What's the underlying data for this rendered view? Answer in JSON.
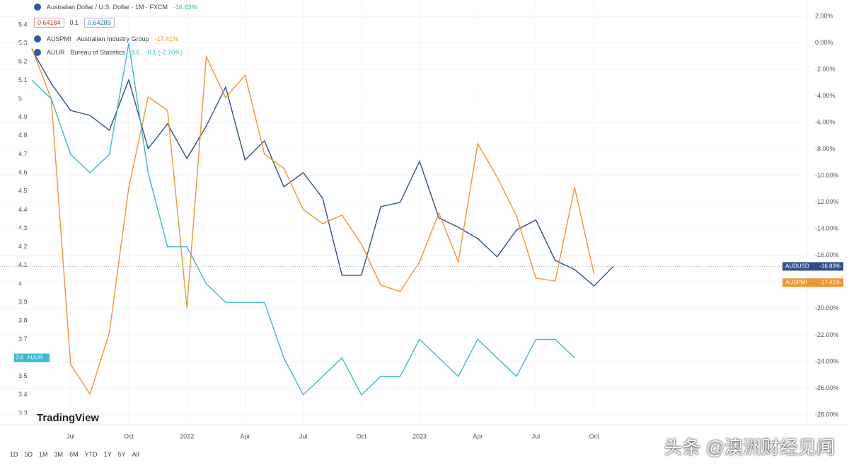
{
  "chart_data": {
    "type": "line",
    "categories": [
      null,
      null,
      "Jul",
      null,
      null,
      "Oct",
      null,
      null,
      "2022",
      null,
      null,
      "Apr",
      null,
      null,
      "Jul",
      null,
      null,
      "Oct",
      null,
      null,
      "2023",
      null,
      null,
      "Apr",
      null,
      null,
      "Jul",
      null,
      null,
      "Oct",
      null
    ],
    "series": [
      {
        "name": "AUDUSD",
        "description": "Australian Dollar / U.S. Dollar · 1M · FXCM",
        "change_label": "-16.83%",
        "color": "#2f4f8f",
        "axis": "y2",
        "values": [
          -0.5,
          -3.06,
          -5.09,
          -5.46,
          -6.58,
          -2.79,
          -7.96,
          -6.1,
          -8.71,
          -6.26,
          -3.33,
          -8.82,
          -7.38,
          -10.84,
          -9.77,
          -11.69,
          -17.5,
          -17.5,
          -12.33,
          -12.01,
          -8.92,
          -13.18,
          -13.88,
          -14.73,
          -16.11,
          -14.09,
          -13.34,
          -16.38,
          -17.07,
          -18.3,
          -16.83
        ]
      },
      {
        "name": "AUSPMI",
        "description": "Australian Industry Group",
        "change_label": "-17.41%",
        "color": "#f0962e",
        "axis": "y2",
        "values": [
          -0.4,
          -4.23,
          -24.21,
          -26.45,
          -21.81,
          -10.89,
          -4.07,
          -5.09,
          -19.95,
          -1.04,
          -4.13,
          -2.42,
          -8.39,
          -9.45,
          -12.54,
          -13.61,
          -12.97,
          -15.15,
          -18.24,
          -18.72,
          -16.49,
          -12.81,
          -16.49,
          -7.59,
          -10.09,
          -13.02,
          -17.71,
          -17.93,
          -10.89,
          -17.41,
          null
        ]
      },
      {
        "name": "AUUR",
        "description": "Bureau of Statistics",
        "change_label": "3.6",
        "change_detail": "-0.1 (-2.70%)",
        "color": "#3fb8cf",
        "axis": "y",
        "values": [
          5.1,
          5.0,
          4.7,
          4.6,
          4.7,
          5.3,
          4.6,
          4.2,
          4.2,
          4.0,
          3.9,
          3.9,
          3.9,
          3.6,
          3.4,
          3.5,
          3.6,
          3.4,
          3.5,
          3.5,
          3.7,
          3.6,
          3.5,
          3.7,
          3.6,
          3.5,
          3.7,
          3.7,
          3.6,
          null,
          null
        ]
      }
    ],
    "quote": {
      "bid": "0.64184",
      "spread": "0.1",
      "ask": "0.64285"
    },
    "ylim": [
      3.3,
      5.4
    ],
    "yticks": [
      5.4,
      5.3,
      5.2,
      5.1,
      5,
      4.9,
      4.8,
      4.7,
      4.6,
      4.5,
      4.4,
      4.3,
      4.2,
      4.1,
      4,
      3.9,
      3.8,
      3.7,
      3.6,
      3.5,
      3.4,
      3.3
    ],
    "y2lim": [
      -28,
      2
    ],
    "y2ticks": [
      {
        "value": 2,
        "label": "2.00%"
      },
      {
        "value": 0,
        "label": "0.00%"
      },
      {
        "value": -2,
        "label": "-2.00%"
      },
      {
        "value": -4,
        "label": "-4.00%"
      },
      {
        "value": -6,
        "label": "-6.00%"
      },
      {
        "value": -8,
        "label": "-8.00%"
      },
      {
        "value": -10,
        "label": "-10.00%"
      },
      {
        "value": -12,
        "label": "-12.00%"
      },
      {
        "value": -14,
        "label": "-14.00%"
      },
      {
        "value": -16,
        "label": "-16.00%"
      },
      {
        "value": -18,
        "label": "-18.00%"
      },
      {
        "value": -20,
        "label": "-20.00%"
      },
      {
        "value": -22,
        "label": "-22.00%"
      },
      {
        "value": -24,
        "label": "-24.00%"
      },
      {
        "value": -26,
        "label": "-26.00%"
      },
      {
        "value": -28,
        "label": "-28.00%"
      }
    ],
    "grid": true,
    "logo": "TradingView",
    "timeframes": [
      "1D",
      "5D",
      "1M",
      "3M",
      "6M",
      "YTD",
      "1Y",
      "5Y",
      "All"
    ],
    "watermark": "头条 @澳洲财经见闻"
  }
}
